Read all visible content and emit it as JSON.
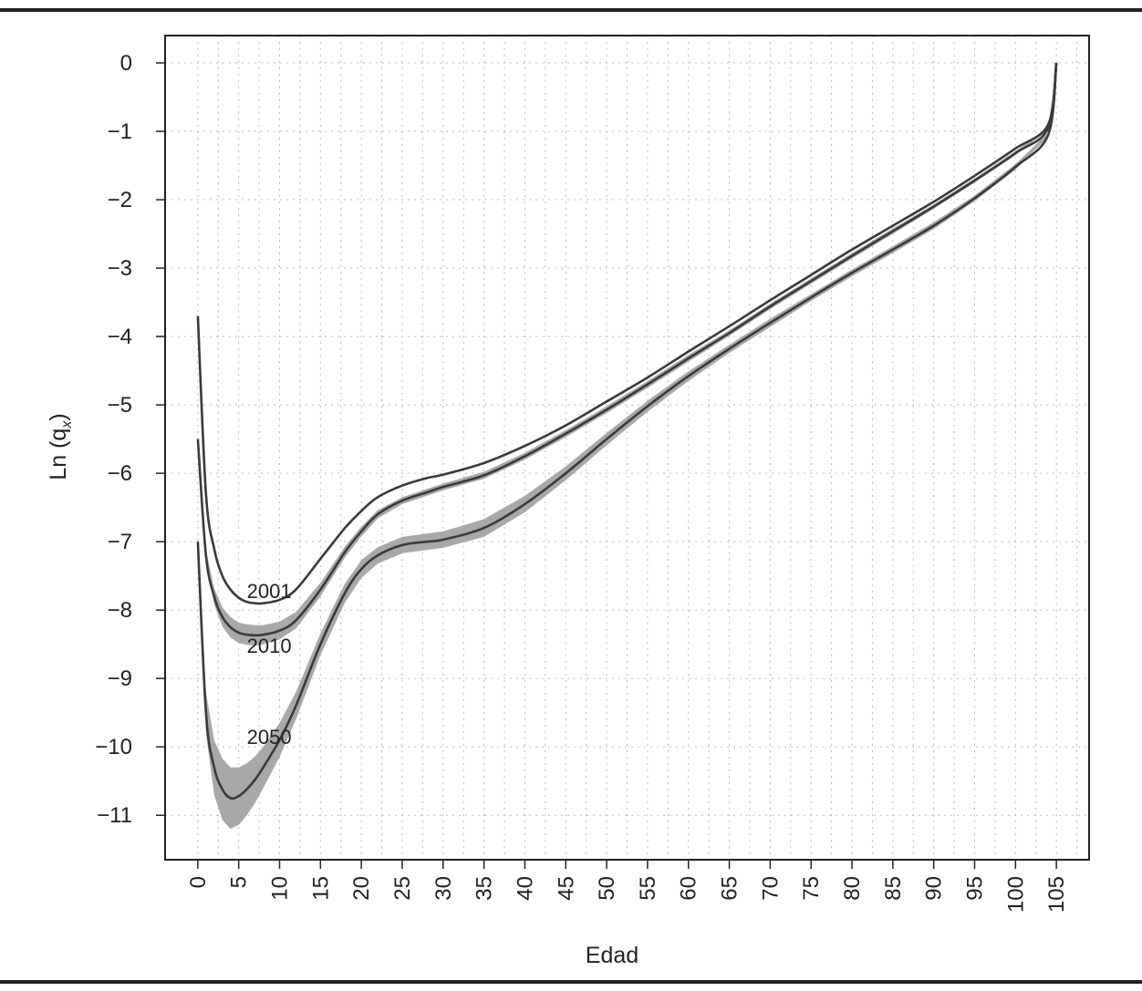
{
  "chart_data": {
    "type": "line",
    "title": "",
    "xlabel": "Edad",
    "ylabel_main": "Ln (q",
    "ylabel_sub": "x",
    "ylabel_close": ")",
    "xlim": [
      -4,
      109
    ],
    "ylim": [
      -11.65,
      0.4
    ],
    "grid": true,
    "xticks": [
      0,
      5,
      10,
      15,
      20,
      25,
      30,
      35,
      40,
      45,
      50,
      55,
      60,
      65,
      70,
      75,
      80,
      85,
      90,
      95,
      100,
      105
    ],
    "yticks": [
      0,
      -1,
      -2,
      -3,
      -4,
      -5,
      -6,
      -7,
      -8,
      -9,
      -10,
      -11
    ],
    "ytick_labels": [
      "0",
      "−1",
      "−2",
      "−3",
      "−4",
      "−5",
      "−6",
      "−7",
      "−8",
      "−9",
      "−10",
      "−11"
    ],
    "series": [
      {
        "name": "2001",
        "label_pos": [
          6,
          -7.72
        ],
        "x": [
          0,
          1,
          2,
          3,
          4,
          5,
          6,
          7,
          8,
          10,
          12,
          15,
          18,
          20,
          22,
          25,
          28,
          30,
          35,
          40,
          45,
          50,
          55,
          60,
          65,
          70,
          75,
          80,
          85,
          90,
          95,
          100,
          104,
          105
        ],
        "y": [
          -3.7,
          -6.3,
          -7.1,
          -7.5,
          -7.7,
          -7.82,
          -7.88,
          -7.9,
          -7.9,
          -7.85,
          -7.7,
          -7.25,
          -6.8,
          -6.55,
          -6.35,
          -6.18,
          -6.07,
          -6.02,
          -5.85,
          -5.6,
          -5.3,
          -4.95,
          -4.6,
          -4.22,
          -3.85,
          -3.47,
          -3.1,
          -2.73,
          -2.38,
          -2.03,
          -1.65,
          -1.25,
          -0.9,
          0.0
        ]
      },
      {
        "name": "2010",
        "label_pos": [
          6,
          -8.52
        ],
        "band": [
          0.05,
          0.08,
          0.12,
          0.14,
          0.15,
          0.15,
          0.15,
          0.15,
          0.14,
          0.13,
          0.12,
          0.1,
          0.08,
          0.07,
          0.06,
          0.05,
          0.05,
          0.05,
          0.05,
          0.05,
          0.05,
          0.05,
          0.05,
          0.05,
          0.04,
          0.04,
          0.04,
          0.04,
          0.04,
          0.03,
          0.03,
          0.03,
          0.02,
          0.0
        ],
        "x": [
          0,
          1,
          2,
          3,
          4,
          5,
          6,
          7,
          8,
          10,
          12,
          15,
          18,
          20,
          22,
          25,
          28,
          30,
          35,
          40,
          45,
          50,
          55,
          60,
          65,
          70,
          75,
          80,
          85,
          90,
          95,
          100,
          104,
          105
        ],
        "y": [
          -5.5,
          -7.2,
          -7.8,
          -8.1,
          -8.25,
          -8.33,
          -8.36,
          -8.37,
          -8.36,
          -8.3,
          -8.15,
          -7.7,
          -7.15,
          -6.85,
          -6.6,
          -6.4,
          -6.28,
          -6.2,
          -6.03,
          -5.75,
          -5.42,
          -5.07,
          -4.7,
          -4.32,
          -3.95,
          -3.56,
          -3.19,
          -2.82,
          -2.46,
          -2.1,
          -1.72,
          -1.32,
          -0.95,
          0.0
        ]
      },
      {
        "name": "2050",
        "label_pos": [
          6,
          -9.85
        ],
        "band": [
          0.15,
          0.3,
          0.4,
          0.45,
          0.45,
          0.42,
          0.38,
          0.34,
          0.3,
          0.25,
          0.2,
          0.16,
          0.14,
          0.13,
          0.12,
          0.12,
          0.12,
          0.12,
          0.13,
          0.12,
          0.1,
          0.09,
          0.08,
          0.07,
          0.06,
          0.06,
          0.05,
          0.05,
          0.05,
          0.05,
          0.04,
          0.04,
          0.03,
          0.0
        ],
        "x": [
          0,
          1,
          2,
          3,
          4,
          5,
          6,
          7,
          8,
          10,
          12,
          15,
          18,
          20,
          22,
          25,
          28,
          30,
          35,
          40,
          45,
          50,
          55,
          60,
          65,
          70,
          75,
          80,
          85,
          90,
          95,
          100,
          104,
          105
        ],
        "y": [
          -7.0,
          -9.5,
          -10.3,
          -10.62,
          -10.75,
          -10.72,
          -10.62,
          -10.48,
          -10.3,
          -9.9,
          -9.4,
          -8.5,
          -7.75,
          -7.4,
          -7.2,
          -7.05,
          -7.0,
          -6.97,
          -6.8,
          -6.45,
          -6.0,
          -5.5,
          -5.02,
          -4.58,
          -4.18,
          -3.8,
          -3.43,
          -3.07,
          -2.73,
          -2.38,
          -1.98,
          -1.52,
          -1.05,
          0.0
        ]
      }
    ],
    "colors": {
      "line": "#3a3a3a",
      "band": "#a8a8a8",
      "grid": "#bdbdbd",
      "axis": "#222222"
    }
  }
}
